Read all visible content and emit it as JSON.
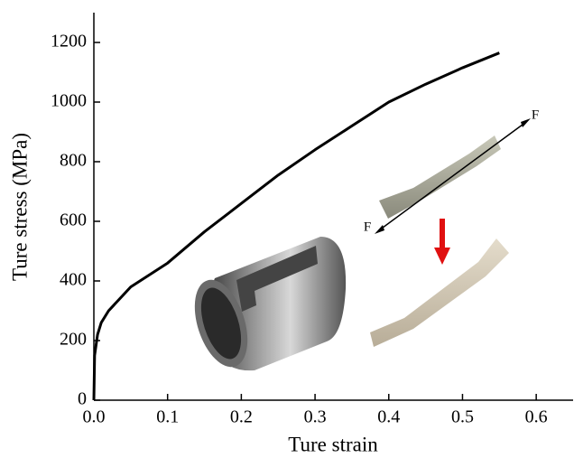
{
  "chart_data": {
    "type": "line",
    "x_label": "Ture strain",
    "y_label": "Ture stress (MPa)",
    "x": [
      0,
      0.001,
      0.005,
      0.01,
      0.02,
      0.05,
      0.1,
      0.15,
      0.2,
      0.25,
      0.3,
      0.35,
      0.4,
      0.45,
      0.5,
      0.55
    ],
    "series": [
      {
        "color": "#000000",
        "values": [
          0,
          150,
          220,
          260,
          300,
          380,
          460,
          565,
          660,
          755,
          840,
          920,
          1000,
          1060,
          1115,
          1165
        ]
      }
    ],
    "xlim": [
      0,
      0.65
    ],
    "ylim": [
      0,
      1300
    ],
    "xticks": [
      {
        "value": 0,
        "label": "0.0"
      },
      0.1,
      0.2,
      0.3,
      0.4,
      0.5,
      0.6
    ],
    "yticks": [
      0,
      200,
      400,
      600,
      800,
      1000,
      1200
    ],
    "annotations": [
      "F",
      "F"
    ]
  }
}
